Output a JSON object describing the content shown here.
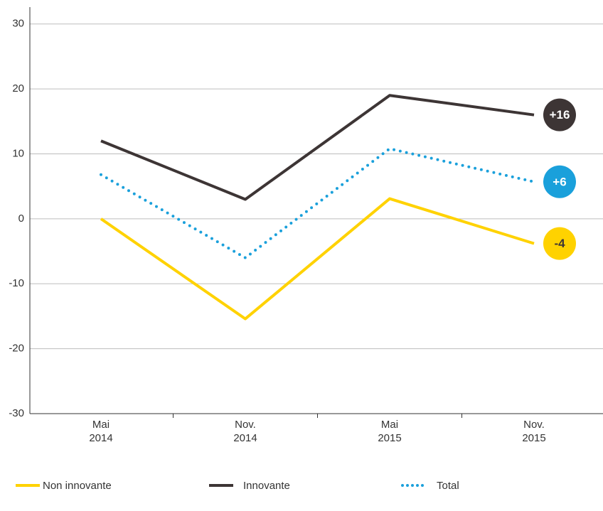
{
  "chart_data": {
    "type": "line",
    "categories": [
      "Mai 2014",
      "Nov. 2014",
      "Mai 2015",
      "Nov. 2015"
    ],
    "series": [
      {
        "name": "Non innovante",
        "color": "#ffd200",
        "line_style": "solid",
        "values": [
          0,
          -15.4,
          3.1,
          -3.8
        ],
        "end_label": "-4",
        "label_text_color": "#3d3535"
      },
      {
        "name": "Innovante",
        "color": "#3d3535",
        "line_style": "solid",
        "values": [
          12,
          3,
          19,
          16
        ],
        "end_label": "+16",
        "label_text_color": "#ffffff"
      },
      {
        "name": "Total",
        "color": "#1aa0db",
        "line_style": "dotted",
        "values": [
          6.8,
          -6,
          10.8,
          5.7
        ],
        "end_label": "+6",
        "label_text_color": "#ffffff"
      }
    ],
    "ylim": [
      -30,
      32.6
    ],
    "yticks": [
      -30,
      -20,
      -10,
      0,
      10,
      20,
      30
    ],
    "grid": true
  }
}
